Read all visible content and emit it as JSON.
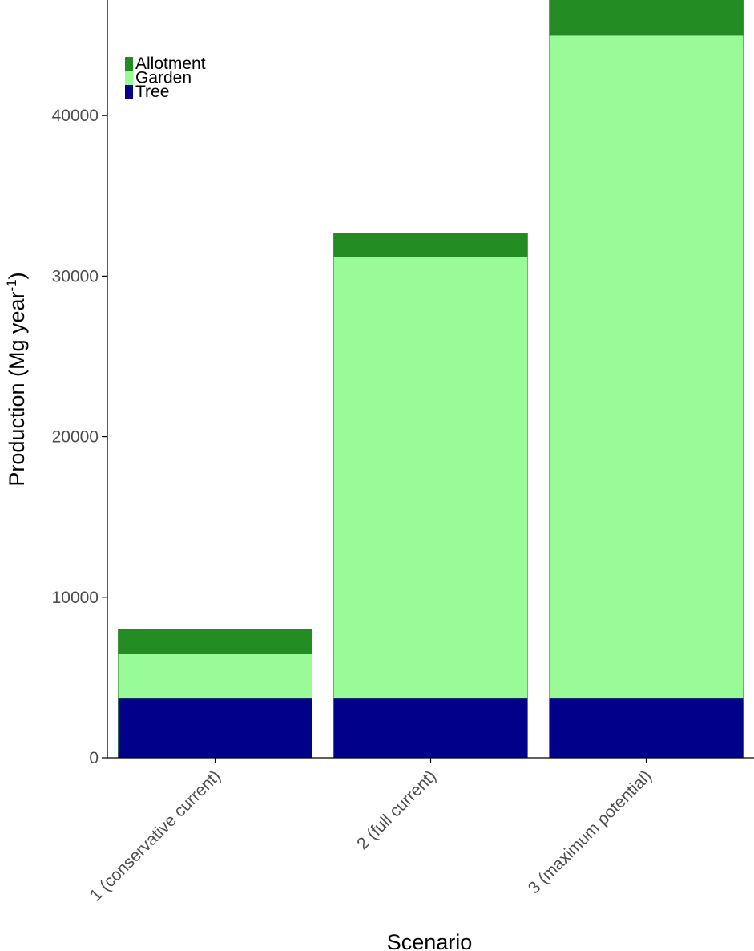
{
  "chart_data": {
    "type": "bar",
    "stacked": true,
    "categories": [
      "1 (conservative current)",
      "2 (full current)",
      "3 (maximum potential)"
    ],
    "series": [
      {
        "name": "Tree",
        "color": "#00008b",
        "values": [
          3700,
          3700,
          3700
        ]
      },
      {
        "name": "Garden",
        "color": "#98fb98",
        "values": [
          2800,
          27500,
          41300
        ]
      },
      {
        "name": "Allotment",
        "color": "#228b22",
        "values": [
          1500,
          1500,
          2200
        ]
      }
    ],
    "legend_order": [
      "Allotment",
      "Garden",
      "Tree"
    ],
    "legend_position": "top-left",
    "xlabel": "Scenario",
    "ylabel_main": "Production (Mg year",
    "ylabel_sup": "-1",
    "ylabel_end": ")",
    "ylim": [
      0,
      47200
    ],
    "yticks": [
      0,
      10000,
      20000,
      30000,
      40000
    ],
    "grid": false
  }
}
